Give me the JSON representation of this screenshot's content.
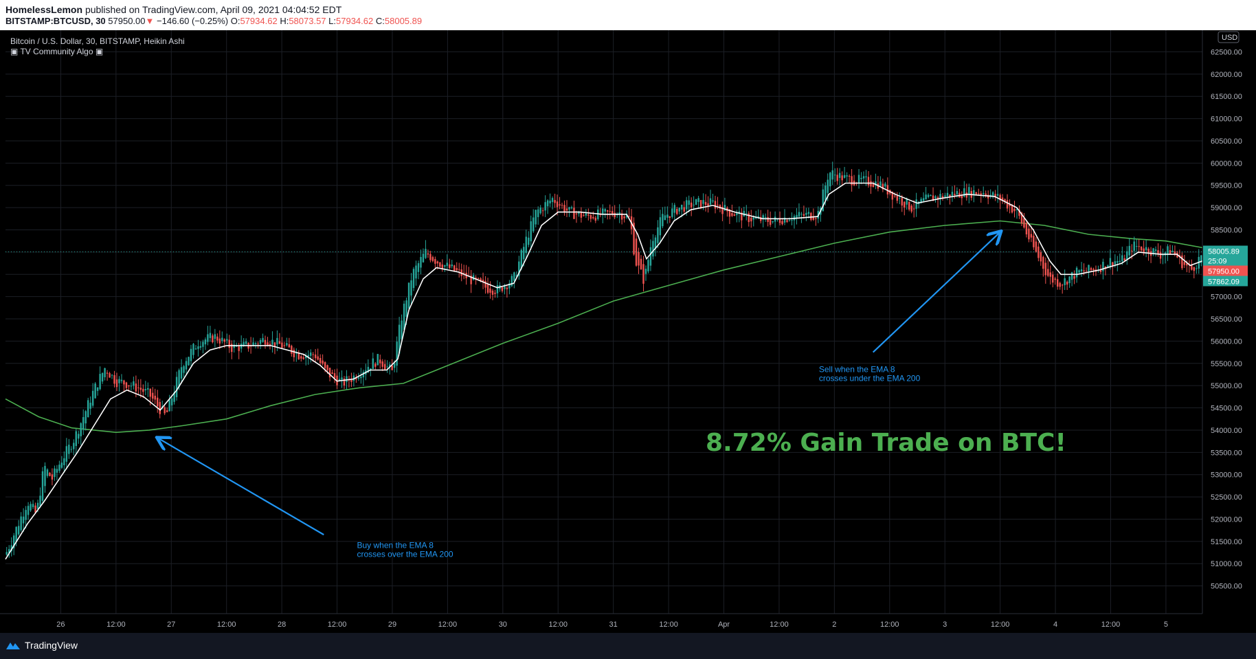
{
  "header": {
    "publisher": "HomelessLemon",
    "published_text": "published on TradingView.com, April 09, 2021 04:04:52 EDT",
    "symbol": "BITSTAMP:BTCUSD, 30",
    "last_price": "57950.00",
    "arrow": "▼",
    "change": "−146.60 (−0.25%)",
    "open_label": "O:",
    "open": "57934.62",
    "high_label": "H:",
    "high": "58073.57",
    "low_label": "L:",
    "low": "57934.62",
    "close_label": "C:",
    "close": "58005.89"
  },
  "legend": {
    "title": "Bitcoin / U.S. Dollar, 30, BITSTAMP, Heikin Ashi",
    "indicator": "TV Community Algo"
  },
  "footer": {
    "brand": "TradingView"
  },
  "colors": {
    "background": "#131722",
    "up": "#26a69a",
    "down": "#ef5350",
    "ema_fast": "#ffffff",
    "ema_slow": "#4caf50",
    "annotation": "#2196f3",
    "headline": "#4caf50"
  },
  "chart_data": {
    "type": "candlestick",
    "title": "Bitcoin / U.S. Dollar, 30, BITSTAMP, Heikin Ashi",
    "currency_label": "USD",
    "ylim": [
      50000,
      62800
    ],
    "y_ticks": [
      "50500.00",
      "51000.00",
      "51500.00",
      "52000.00",
      "52500.00",
      "53000.00",
      "53500.00",
      "54000.00",
      "54500.00",
      "55000.00",
      "55500.00",
      "56000.00",
      "56500.00",
      "57000.00",
      "57500.00",
      "58000.00",
      "58500.00",
      "59000.00",
      "59500.00",
      "60000.00",
      "60500.00",
      "61000.00",
      "61500.00",
      "62000.00",
      "62500.00"
    ],
    "x_ticks": [
      {
        "label": "26",
        "t": 0.5
      },
      {
        "label": "12:00",
        "t": 1.0
      },
      {
        "label": "27",
        "t": 1.5
      },
      {
        "label": "12:00",
        "t": 2.0
      },
      {
        "label": "28",
        "t": 2.5
      },
      {
        "label": "12:00",
        "t": 3.0
      },
      {
        "label": "29",
        "t": 3.5
      },
      {
        "label": "12:00",
        "t": 4.0
      },
      {
        "label": "30",
        "t": 4.5
      },
      {
        "label": "12:00",
        "t": 5.0
      },
      {
        "label": "31",
        "t": 5.5
      },
      {
        "label": "12:00",
        "t": 6.0
      },
      {
        "label": "Apr",
        "t": 6.5
      },
      {
        "label": "12:00",
        "t": 7.0
      },
      {
        "label": "2",
        "t": 7.5
      },
      {
        "label": "12:00",
        "t": 8.0
      },
      {
        "label": "3",
        "t": 8.5
      },
      {
        "label": "12:00",
        "t": 9.0
      },
      {
        "label": "4",
        "t": 9.5
      },
      {
        "label": "12:00",
        "t": 10.0
      },
      {
        "label": "5",
        "t": 10.5
      }
    ],
    "x_range": [
      0.0,
      10.83
    ],
    "price_path": [
      [
        0.0,
        51200
      ],
      [
        0.1,
        51800
      ],
      [
        0.2,
        52400
      ],
      [
        0.28,
        52100
      ],
      [
        0.35,
        53200
      ],
      [
        0.42,
        52900
      ],
      [
        0.5,
        53300
      ],
      [
        0.62,
        53800
      ],
      [
        0.72,
        54400
      ],
      [
        0.8,
        54900
      ],
      [
        0.9,
        55400
      ],
      [
        1.0,
        55100
      ],
      [
        1.1,
        55050
      ],
      [
        1.2,
        54950
      ],
      [
        1.3,
        54800
      ],
      [
        1.45,
        54300
      ],
      [
        1.6,
        55500
      ],
      [
        1.75,
        56000
      ],
      [
        1.9,
        56100
      ],
      [
        2.05,
        55850
      ],
      [
        2.2,
        55900
      ],
      [
        2.35,
        56050
      ],
      [
        2.5,
        55900
      ],
      [
        2.65,
        55700
      ],
      [
        2.8,
        55700
      ],
      [
        2.9,
        55300
      ],
      [
        3.05,
        55050
      ],
      [
        3.15,
        55200
      ],
      [
        3.25,
        55400
      ],
      [
        3.38,
        55600
      ],
      [
        3.5,
        55300
      ],
      [
        3.58,
        56500
      ],
      [
        3.68,
        57500
      ],
      [
        3.8,
        58000
      ],
      [
        3.9,
        57800
      ],
      [
        4.05,
        57600
      ],
      [
        4.2,
        57400
      ],
      [
        4.35,
        57200
      ],
      [
        4.45,
        57150
      ],
      [
        4.6,
        57400
      ],
      [
        4.7,
        58200
      ],
      [
        4.8,
        58900
      ],
      [
        4.95,
        59200
      ],
      [
        5.1,
        58900
      ],
      [
        5.25,
        58800
      ],
      [
        5.4,
        58850
      ],
      [
        5.55,
        58900
      ],
      [
        5.65,
        58750
      ],
      [
        5.7,
        57800
      ],
      [
        5.78,
        57350
      ],
      [
        5.85,
        58300
      ],
      [
        5.95,
        58800
      ],
      [
        6.1,
        59000
      ],
      [
        6.25,
        59100
      ],
      [
        6.4,
        59100
      ],
      [
        6.55,
        58900
      ],
      [
        6.75,
        58750
      ],
      [
        6.95,
        58700
      ],
      [
        7.1,
        58800
      ],
      [
        7.35,
        58850
      ],
      [
        7.45,
        59800
      ],
      [
        7.6,
        59650
      ],
      [
        7.75,
        59600
      ],
      [
        7.9,
        59550
      ],
      [
        8.05,
        59250
      ],
      [
        8.2,
        59000
      ],
      [
        8.35,
        59200
      ],
      [
        8.55,
        59300
      ],
      [
        8.7,
        59350
      ],
      [
        8.85,
        59350
      ],
      [
        9.0,
        59200
      ],
      [
        9.15,
        58900
      ],
      [
        9.3,
        58100
      ],
      [
        9.45,
        57400
      ],
      [
        9.55,
        57300
      ],
      [
        9.7,
        57550
      ],
      [
        9.85,
        57600
      ],
      [
        10.0,
        57800
      ],
      [
        10.1,
        57800
      ],
      [
        10.2,
        58150
      ],
      [
        10.35,
        58050
      ],
      [
        10.45,
        57950
      ],
      [
        10.55,
        58050
      ],
      [
        10.65,
        57750
      ],
      [
        10.73,
        57600
      ],
      [
        10.83,
        57950
      ]
    ],
    "ema8_path": [
      [
        0.0,
        51100
      ],
      [
        0.2,
        51900
      ],
      [
        0.35,
        52400
      ],
      [
        0.5,
        52950
      ],
      [
        0.65,
        53500
      ],
      [
        0.8,
        54100
      ],
      [
        0.95,
        54700
      ],
      [
        1.1,
        54900
      ],
      [
        1.25,
        54750
      ],
      [
        1.4,
        54450
      ],
      [
        1.55,
        54900
      ],
      [
        1.7,
        55500
      ],
      [
        1.85,
        55800
      ],
      [
        2.0,
        55900
      ],
      [
        2.2,
        55900
      ],
      [
        2.4,
        55900
      ],
      [
        2.55,
        55800
      ],
      [
        2.7,
        55700
      ],
      [
        2.85,
        55450
      ],
      [
        3.0,
        55100
      ],
      [
        3.15,
        55150
      ],
      [
        3.3,
        55350
      ],
      [
        3.45,
        55350
      ],
      [
        3.55,
        55600
      ],
      [
        3.65,
        56700
      ],
      [
        3.78,
        57400
      ],
      [
        3.9,
        57650
      ],
      [
        4.1,
        57550
      ],
      [
        4.3,
        57350
      ],
      [
        4.45,
        57200
      ],
      [
        4.6,
        57300
      ],
      [
        4.72,
        57900
      ],
      [
        4.85,
        58600
      ],
      [
        5.0,
        58900
      ],
      [
        5.2,
        58900
      ],
      [
        5.4,
        58850
      ],
      [
        5.62,
        58850
      ],
      [
        5.72,
        58400
      ],
      [
        5.8,
        57850
      ],
      [
        5.92,
        58200
      ],
      [
        6.05,
        58700
      ],
      [
        6.2,
        58950
      ],
      [
        6.4,
        59050
      ],
      [
        6.6,
        58900
      ],
      [
        6.85,
        58750
      ],
      [
        7.1,
        58750
      ],
      [
        7.35,
        58800
      ],
      [
        7.45,
        59300
      ],
      [
        7.6,
        59550
      ],
      [
        7.85,
        59550
      ],
      [
        8.05,
        59300
      ],
      [
        8.25,
        59100
      ],
      [
        8.45,
        59200
      ],
      [
        8.7,
        59300
      ],
      [
        8.95,
        59250
      ],
      [
        9.15,
        59000
      ],
      [
        9.3,
        58500
      ],
      [
        9.45,
        57800
      ],
      [
        9.55,
        57500
      ],
      [
        9.7,
        57500
      ],
      [
        9.9,
        57600
      ],
      [
        10.1,
        57750
      ],
      [
        10.25,
        58000
      ],
      [
        10.45,
        57950
      ],
      [
        10.6,
        57950
      ],
      [
        10.72,
        57700
      ],
      [
        10.83,
        57800
      ]
    ],
    "ema200_path": [
      [
        0.0,
        54700
      ],
      [
        0.3,
        54300
      ],
      [
        0.6,
        54050
      ],
      [
        1.0,
        53950
      ],
      [
        1.3,
        54000
      ],
      [
        1.6,
        54100
      ],
      [
        2.0,
        54250
      ],
      [
        2.4,
        54550
      ],
      [
        2.8,
        54800
      ],
      [
        3.2,
        54950
      ],
      [
        3.6,
        55050
      ],
      [
        4.0,
        55450
      ],
      [
        4.5,
        55950
      ],
      [
        5.0,
        56400
      ],
      [
        5.5,
        56900
      ],
      [
        6.0,
        57250
      ],
      [
        6.5,
        57600
      ],
      [
        7.0,
        57900
      ],
      [
        7.5,
        58200
      ],
      [
        8.0,
        58450
      ],
      [
        8.5,
        58600
      ],
      [
        9.0,
        58700
      ],
      [
        9.4,
        58600
      ],
      [
        9.8,
        58400
      ],
      [
        10.2,
        58300
      ],
      [
        10.5,
        58250
      ],
      [
        10.83,
        58100
      ]
    ],
    "price_labels": [
      {
        "label": "58005.89",
        "price": 58005.89,
        "color": "#26a69a"
      },
      {
        "label": "25:09",
        "price": 57885,
        "color": "#26a69a"
      },
      {
        "label": "57950.00",
        "price": 57950.0,
        "color": "#ef5350"
      },
      {
        "label": "57862.09",
        "price": 57862.09,
        "color": "#26a69a"
      }
    ],
    "annotations": [
      {
        "name": "buy-note",
        "lines": [
          "Buy when the EMA 8",
          "crosses over the EMA 200"
        ],
        "t": 3.18,
        "price": 51350
      },
      {
        "name": "sell-note",
        "lines": [
          "Sell when the EMA 8",
          "crosses under the EMA 200"
        ],
        "t": 7.36,
        "price": 55300
      }
    ],
    "headline": "8.72% Gain Trade on BTC!",
    "arrows": [
      {
        "name": "buy-arrow",
        "from": [
          2.88,
          51650
        ],
        "to": [
          1.38,
          53820
        ]
      },
      {
        "name": "sell-arrow",
        "from": [
          7.85,
          55750
        ],
        "to": [
          9.0,
          58450
        ]
      }
    ]
  }
}
